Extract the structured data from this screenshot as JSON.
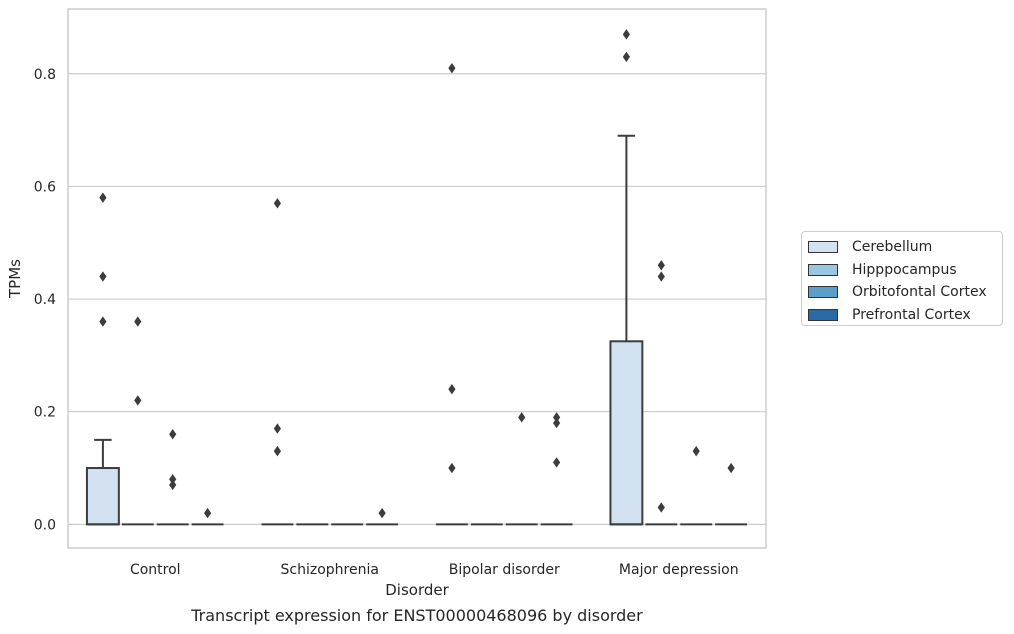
{
  "caption": "Transcript expression for ENST00000468096 by disorder",
  "chart_data": {
    "type": "box",
    "xlabel": "Disorder",
    "ylabel": "TPMs",
    "ylim": [
      -0.042,
      0.915
    ],
    "yticks": [
      0.0,
      0.2,
      0.4,
      0.6,
      0.8
    ],
    "ytick_labels": [
      "0.0",
      "0.2",
      "0.4",
      "0.6",
      "0.8"
    ],
    "grid": "horizontal",
    "legend_position": "right",
    "categories": [
      "Control",
      "Schizophrenia",
      "Bipolar disorder",
      "Major depression"
    ],
    "series": [
      {
        "name": "Cerebellum",
        "color": "#d3e2f0",
        "boxes": [
          {
            "q1": 0.0,
            "median": 0.0,
            "q3": 0.1,
            "whisker_low": 0.0,
            "whisker_high": 0.15,
            "outliers": [
              0.58,
              0.44,
              0.36
            ]
          },
          {
            "q1": 0.0,
            "median": 0.0,
            "q3": 0.0,
            "whisker_low": 0.0,
            "whisker_high": 0.0,
            "outliers": [
              0.57,
              0.17,
              0.13
            ]
          },
          {
            "q1": 0.0,
            "median": 0.0,
            "q3": 0.0,
            "whisker_low": 0.0,
            "whisker_high": 0.0,
            "outliers": [
              0.81,
              0.24,
              0.1
            ]
          },
          {
            "q1": 0.0,
            "median": 0.0,
            "q3": 0.325,
            "whisker_low": 0.0,
            "whisker_high": 0.69,
            "outliers": [
              0.87,
              0.83
            ]
          }
        ]
      },
      {
        "name": "Hipppocampus",
        "color": "#9ac7e0",
        "boxes": [
          {
            "q1": 0.0,
            "median": 0.0,
            "q3": 0.0,
            "whisker_low": 0.0,
            "whisker_high": 0.0,
            "outliers": [
              0.36,
              0.22
            ]
          },
          {
            "q1": 0.0,
            "median": 0.0,
            "q3": 0.0,
            "whisker_low": 0.0,
            "whisker_high": 0.0,
            "outliers": []
          },
          {
            "q1": 0.0,
            "median": 0.0,
            "q3": 0.0,
            "whisker_low": 0.0,
            "whisker_high": 0.0,
            "outliers": []
          },
          {
            "q1": 0.0,
            "median": 0.0,
            "q3": 0.0,
            "whisker_low": 0.0,
            "whisker_high": 0.0,
            "outliers": [
              0.46,
              0.44,
              0.03
            ]
          }
        ]
      },
      {
        "name": "Orbitofontal Cortex",
        "color": "#5a9ec9",
        "boxes": [
          {
            "q1": 0.0,
            "median": 0.0,
            "q3": 0.0,
            "whisker_low": 0.0,
            "whisker_high": 0.0,
            "outliers": [
              0.16,
              0.08,
              0.07
            ]
          },
          {
            "q1": 0.0,
            "median": 0.0,
            "q3": 0.0,
            "whisker_low": 0.0,
            "whisker_high": 0.0,
            "outliers": []
          },
          {
            "q1": 0.0,
            "median": 0.0,
            "q3": 0.0,
            "whisker_low": 0.0,
            "whisker_high": 0.0,
            "outliers": [
              0.19
            ]
          },
          {
            "q1": 0.0,
            "median": 0.0,
            "q3": 0.0,
            "whisker_low": 0.0,
            "whisker_high": 0.0,
            "outliers": [
              0.13
            ]
          }
        ]
      },
      {
        "name": "Prefrontal Cortex",
        "color": "#2b6aa8",
        "boxes": [
          {
            "q1": 0.0,
            "median": 0.0,
            "q3": 0.0,
            "whisker_low": 0.0,
            "whisker_high": 0.0,
            "outliers": [
              0.02
            ]
          },
          {
            "q1": 0.0,
            "median": 0.0,
            "q3": 0.0,
            "whisker_low": 0.0,
            "whisker_high": 0.0,
            "outliers": [
              0.02
            ]
          },
          {
            "q1": 0.0,
            "median": 0.0,
            "q3": 0.0,
            "whisker_low": 0.0,
            "whisker_high": 0.0,
            "outliers": [
              0.19,
              0.18,
              0.11
            ]
          },
          {
            "q1": 0.0,
            "median": 0.0,
            "q3": 0.0,
            "whisker_low": 0.0,
            "whisker_high": 0.0,
            "outliers": [
              0.1
            ]
          }
        ]
      }
    ]
  }
}
